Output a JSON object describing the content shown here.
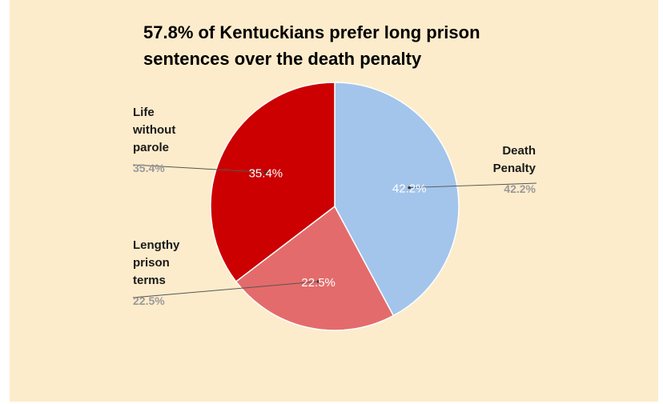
{
  "chart_data": {
    "type": "pie",
    "title_lines": [
      "57.8% of Kentuckians prefer long prison",
      "sentences over the death penalty"
    ],
    "slices": [
      {
        "label_lines": [
          "Death",
          "Penalty"
        ],
        "value": 42.2,
        "display": "42.2%",
        "color": "#a3c5eb"
      },
      {
        "label_lines": [
          "Lengthy",
          "prison",
          "terms"
        ],
        "value": 22.5,
        "display": "22.5%",
        "color": "#e46b6b"
      },
      {
        "label_lines": [
          "Life",
          "without",
          "parole"
        ],
        "value": 35.4,
        "display": "35.4%",
        "color": "#cc0000"
      }
    ],
    "start_angle_deg": 0,
    "direction": "clockwise",
    "legend": "none"
  }
}
